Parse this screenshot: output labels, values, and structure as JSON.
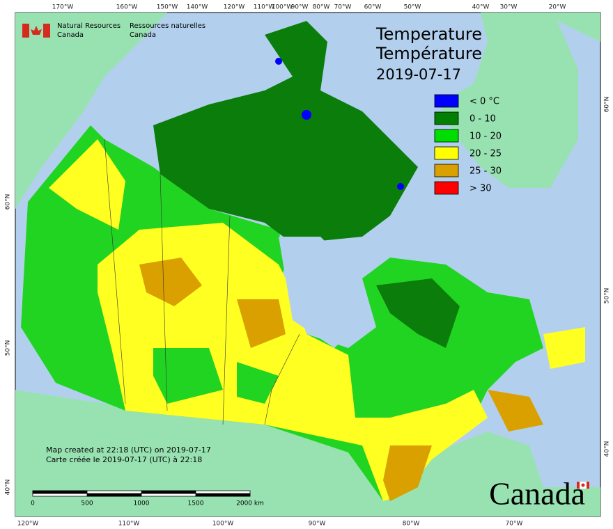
{
  "header": {
    "agency_en": "Natural Resources",
    "country_en": "Canada",
    "agency_fr": "Ressources naturelles",
    "country_fr": "Canada"
  },
  "title": {
    "line1": "Temperature",
    "line2": "Température",
    "date": "2019-07-17"
  },
  "legend": [
    {
      "label": "< 0 °C",
      "color": "#0000ff"
    },
    {
      "label": "0 - 10",
      "color": "#007f00"
    },
    {
      "label": "10 - 20",
      "color": "#00dd00"
    },
    {
      "label": "20 - 25",
      "color": "#ffff00"
    },
    {
      "label": "25 - 30",
      "color": "#d9a000"
    },
    {
      "label": "> 30",
      "color": "#ff0000"
    }
  ],
  "graticule": {
    "top": [
      "170°W",
      "160°W",
      "150°W",
      "140°W",
      "120°W",
      "110°W",
      "100°W",
      "90°W",
      "80°W",
      "70°W",
      "60°W",
      "50°W",
      "40°W",
      "30°W",
      "20°W"
    ],
    "bottom": [
      "120°W",
      "110°W",
      "100°W",
      "90°W",
      "80°W",
      "70°W"
    ],
    "left": [
      "60°N",
      "50°N",
      "40°N"
    ],
    "right": [
      "60°N",
      "50°N",
      "40°N"
    ]
  },
  "footer": {
    "created_en": "Map created at 22:18 (UTC) on 2019-07-17",
    "created_fr": "Carte créée le 2019-07-17 (UTC) à 22:18"
  },
  "scale": [
    "0",
    "500",
    "1000",
    "1500",
    "2000 km"
  ],
  "wordmark": "Canada"
}
